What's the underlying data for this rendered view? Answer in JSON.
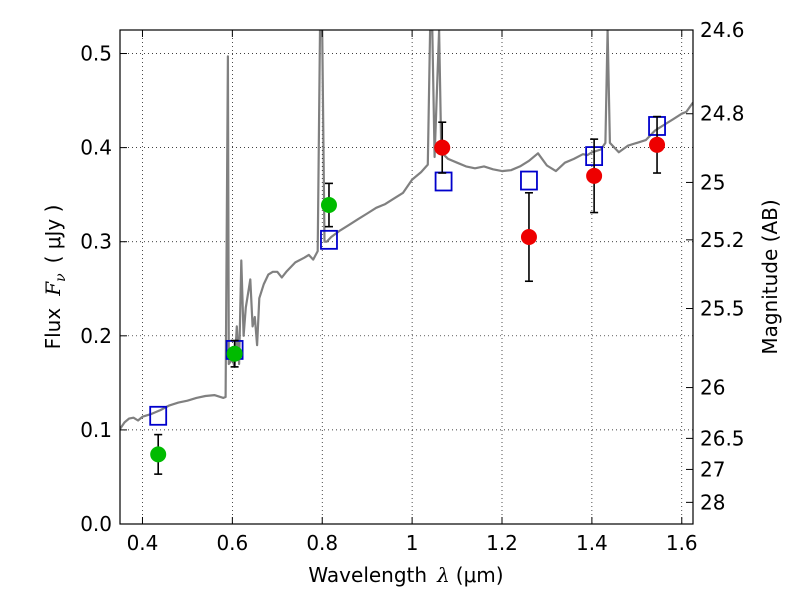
{
  "chart_data": {
    "type": "line",
    "xlabel_text": "Wavelength",
    "xlabel_symbol": "λ",
    "xlabel_unit": "(μm)",
    "ylabel_text": "Flux",
    "ylabel_symbol": "F",
    "ylabel_subscript": "ν",
    "ylabel_unit": "( μJy )",
    "y2label": "Magnitude (AB)",
    "xlim": [
      0.35,
      1.625
    ],
    "ylim": [
      0.0,
      0.525
    ],
    "xticks": [
      0.4,
      0.6,
      0.8,
      1.0,
      1.2,
      1.4,
      1.6
    ],
    "xtick_labels": [
      "0.4",
      "0.6",
      "0.8",
      "1",
      "1.2",
      "1.4",
      "1.6"
    ],
    "yticks": [
      0.0,
      0.1,
      0.2,
      0.3,
      0.4,
      0.5
    ],
    "ytick_labels": [
      "0.0",
      "0.1",
      "0.2",
      "0.3",
      "0.4",
      "0.5"
    ],
    "y2ticks": [
      {
        "label": "24.6",
        "flux": 0.525
      },
      {
        "label": "24.8",
        "flux": 0.436
      },
      {
        "label": "25",
        "flux": 0.363
      },
      {
        "label": "25.2",
        "flux": 0.302
      },
      {
        "label": "25.5",
        "flux": 0.229
      },
      {
        "label": "26",
        "flux": 0.145
      },
      {
        "label": "26.5",
        "flux": 0.091
      },
      {
        "label": "27",
        "flux": 0.058
      },
      {
        "label": "28",
        "flux": 0.023
      }
    ],
    "grid": true,
    "model_spectrum": {
      "name": "model spectrum",
      "color": "#808080",
      "points": [
        [
          0.35,
          0.101
        ],
        [
          0.36,
          0.108
        ],
        [
          0.37,
          0.112
        ],
        [
          0.38,
          0.113
        ],
        [
          0.39,
          0.11
        ],
        [
          0.4,
          0.114
        ],
        [
          0.42,
          0.117
        ],
        [
          0.44,
          0.121
        ],
        [
          0.46,
          0.126
        ],
        [
          0.48,
          0.129
        ],
        [
          0.5,
          0.131
        ],
        [
          0.52,
          0.134
        ],
        [
          0.54,
          0.136
        ],
        [
          0.56,
          0.137
        ],
        [
          0.58,
          0.134
        ],
        [
          0.585,
          0.135
        ],
        [
          0.59,
          0.497
        ],
        [
          0.592,
          0.17
        ],
        [
          0.6,
          0.175
        ],
        [
          0.605,
          0.167
        ],
        [
          0.61,
          0.21
        ],
        [
          0.615,
          0.17
        ],
        [
          0.62,
          0.28
        ],
        [
          0.625,
          0.2
        ],
        [
          0.63,
          0.23
        ],
        [
          0.64,
          0.26
        ],
        [
          0.645,
          0.21
        ],
        [
          0.65,
          0.22
        ],
        [
          0.655,
          0.19
        ],
        [
          0.66,
          0.24
        ],
        [
          0.67,
          0.255
        ],
        [
          0.68,
          0.265
        ],
        [
          0.69,
          0.268
        ],
        [
          0.7,
          0.268
        ],
        [
          0.71,
          0.262
        ],
        [
          0.72,
          0.268
        ],
        [
          0.74,
          0.278
        ],
        [
          0.76,
          0.283
        ],
        [
          0.77,
          0.286
        ],
        [
          0.78,
          0.281
        ],
        [
          0.79,
          0.29
        ],
        [
          0.795,
          0.525
        ],
        [
          0.8,
          0.525
        ],
        [
          0.805,
          0.3
        ],
        [
          0.81,
          0.3
        ],
        [
          0.82,
          0.305
        ],
        [
          0.84,
          0.312
        ],
        [
          0.86,
          0.318
        ],
        [
          0.88,
          0.324
        ],
        [
          0.9,
          0.33
        ],
        [
          0.92,
          0.336
        ],
        [
          0.94,
          0.34
        ],
        [
          0.96,
          0.346
        ],
        [
          0.98,
          0.352
        ],
        [
          1.0,
          0.366
        ],
        [
          1.02,
          0.374
        ],
        [
          1.035,
          0.382
        ],
        [
          1.04,
          0.525
        ],
        [
          1.045,
          0.525
        ],
        [
          1.05,
          0.39
        ],
        [
          1.06,
          0.525
        ],
        [
          1.065,
          0.395
        ],
        [
          1.08,
          0.388
        ],
        [
          1.1,
          0.384
        ],
        [
          1.12,
          0.38
        ],
        [
          1.14,
          0.378
        ],
        [
          1.16,
          0.38
        ],
        [
          1.18,
          0.377
        ],
        [
          1.2,
          0.375
        ],
        [
          1.22,
          0.376
        ],
        [
          1.24,
          0.38
        ],
        [
          1.26,
          0.386
        ],
        [
          1.28,
          0.394
        ],
        [
          1.3,
          0.381
        ],
        [
          1.32,
          0.375
        ],
        [
          1.34,
          0.384
        ],
        [
          1.36,
          0.388
        ],
        [
          1.38,
          0.393
        ],
        [
          1.39,
          0.392
        ],
        [
          1.4,
          0.395
        ],
        [
          1.42,
          0.398
        ],
        [
          1.43,
          0.405
        ],
        [
          1.435,
          0.525
        ],
        [
          1.44,
          0.405
        ],
        [
          1.46,
          0.395
        ],
        [
          1.48,
          0.402
        ],
        [
          1.5,
          0.405
        ],
        [
          1.52,
          0.408
        ],
        [
          1.54,
          0.418
        ],
        [
          1.56,
          0.424
        ],
        [
          1.58,
          0.43
        ],
        [
          1.6,
          0.436
        ],
        [
          1.61,
          0.438
        ],
        [
          1.625,
          0.448
        ]
      ]
    },
    "model_points": {
      "name": "model photometry",
      "marker": "open square",
      "color": "#0000cc",
      "x": [
        0.435,
        0.605,
        0.815,
        1.07,
        1.26,
        1.405,
        1.545
      ],
      "y": [
        0.115,
        0.185,
        0.302,
        0.364,
        0.365,
        0.391,
        0.423
      ]
    },
    "observed_green": {
      "name": "observed (green)",
      "color": "#00bb00",
      "x": [
        0.435,
        0.605,
        0.815
      ],
      "y": [
        0.074,
        0.181,
        0.339
      ],
      "yerr": [
        0.021,
        0.014,
        0.023
      ]
    },
    "observed_red": {
      "name": "observed (red)",
      "color": "#ee0000",
      "x": [
        1.067,
        1.26,
        1.405,
        1.545
      ],
      "y": [
        0.4,
        0.305,
        0.37,
        0.403
      ],
      "yerr": [
        0.027,
        0.047,
        0.039,
        0.03
      ]
    }
  }
}
